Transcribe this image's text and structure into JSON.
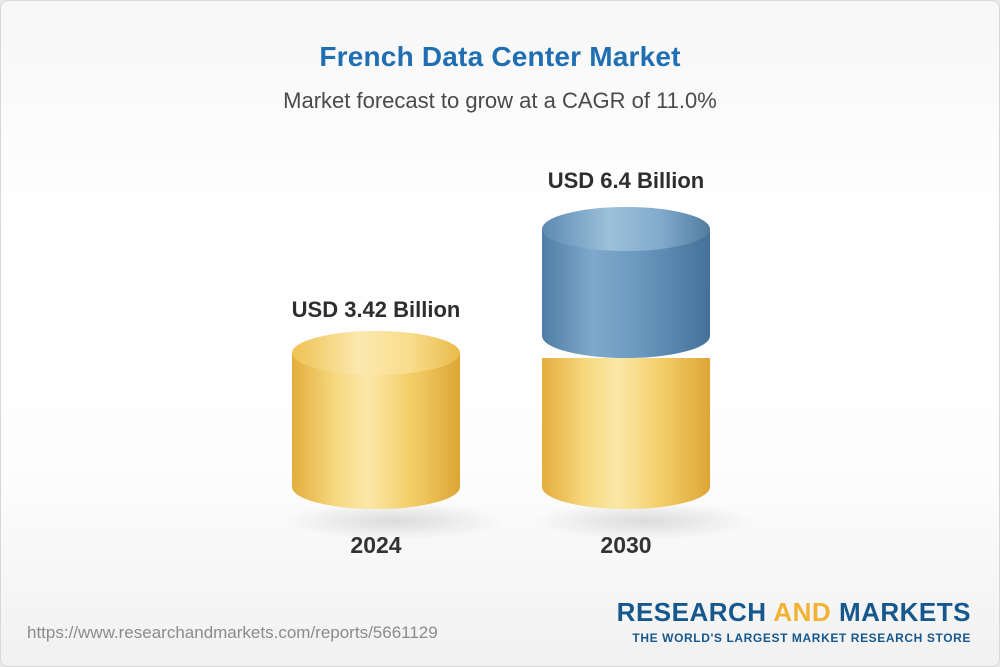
{
  "header": {
    "title": "French Data Center Market",
    "subtitle": "Market forecast to grow at a CAGR of 11.0%"
  },
  "chart_data": {
    "type": "bar",
    "style": "3d-cylinder",
    "title": "French Data Center Market",
    "subtitle": "Market forecast to grow at a CAGR of 11.0%",
    "unit": "USD Billion",
    "cagr": "11.0%",
    "categories": [
      "2024",
      "2030"
    ],
    "values": [
      3.42,
      6.4
    ],
    "value_labels": [
      "USD 3.42 Billion",
      "USD 6.4 Billion"
    ],
    "legend_position": "none",
    "grid": false,
    "colors": {
      "bar_2024": "#F2CB66",
      "bar_2030_base": "#F2CB66",
      "bar_2030_top": "#5E8CB4",
      "title": "#1F6FB2"
    }
  },
  "footer": {
    "url": "https://www.researchandmarkets.com/reports/5661129",
    "logo": {
      "word1": "RESEARCH",
      "word2": "AND",
      "word3": "MARKETS",
      "tagline": "THE WORLD'S LARGEST MARKET RESEARCH STORE"
    }
  }
}
